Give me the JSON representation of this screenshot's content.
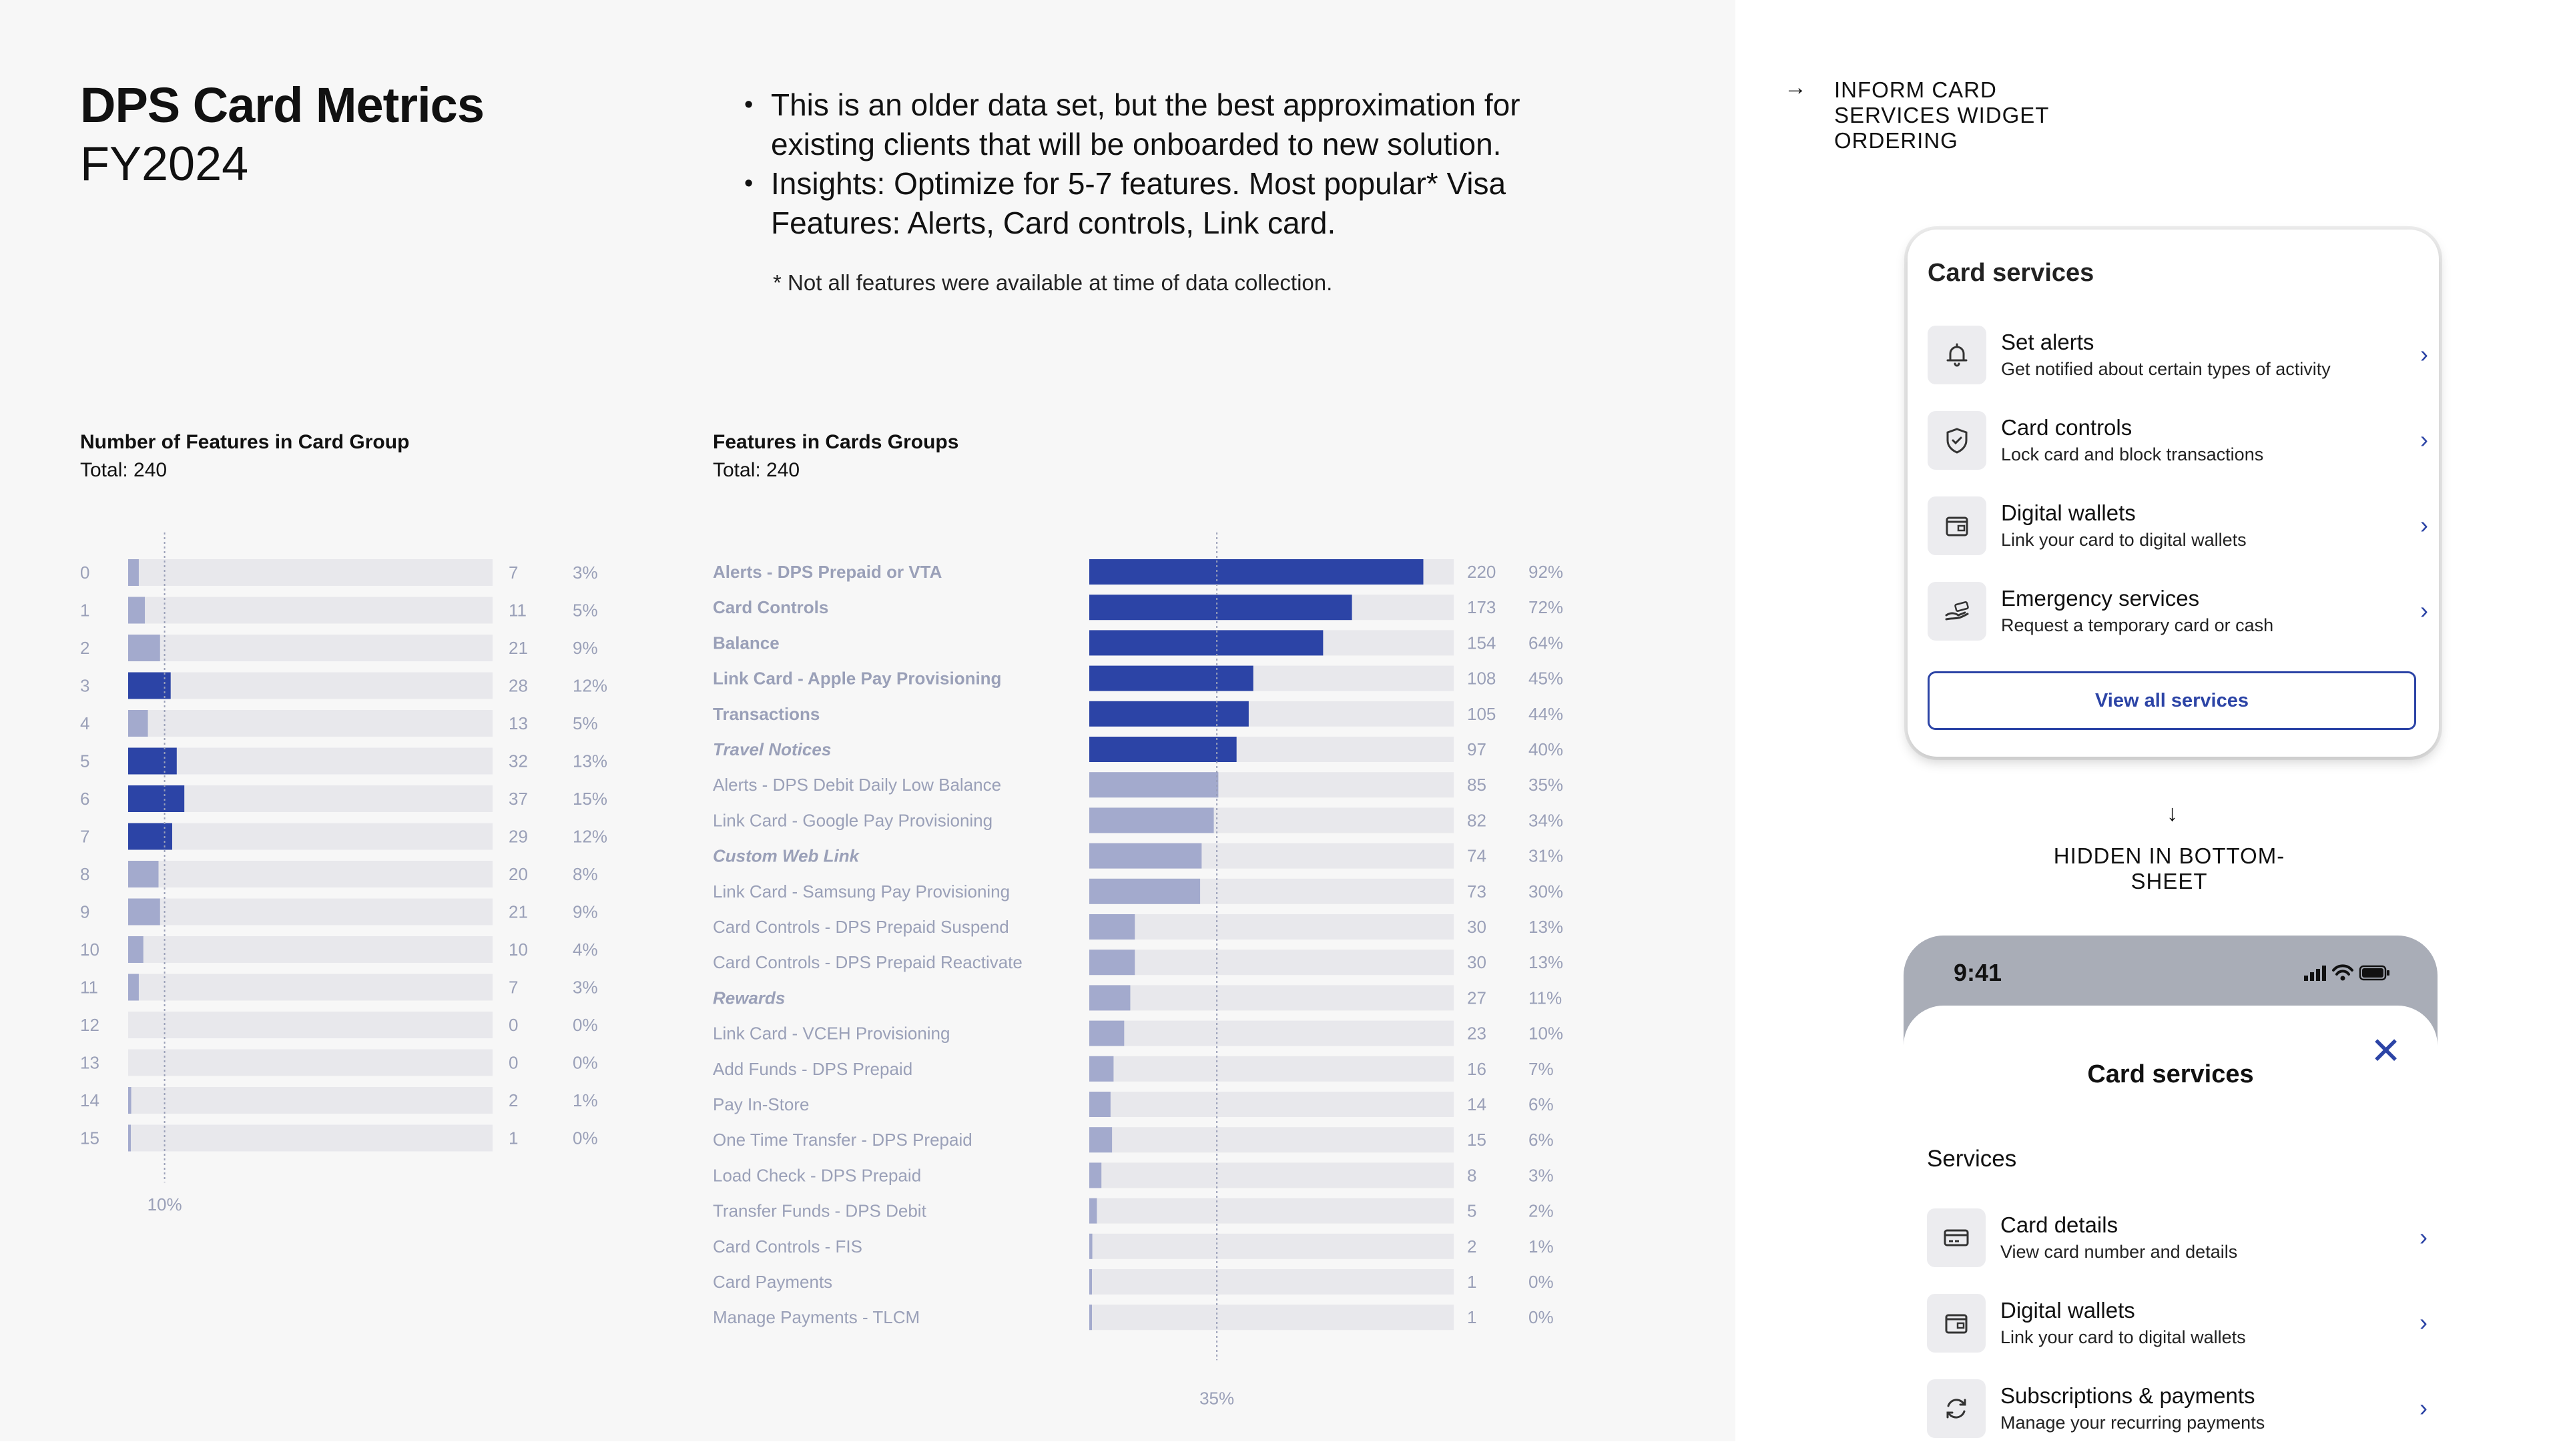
{
  "header": {
    "title": "DPS Card Metrics",
    "subtitle": "FY2024",
    "bullets": [
      "This is an older data set, but the best approximation for existing clients that will be onboarded to new solution.",
      "Insights: Optimize for 5-7 features. Most popular* Visa Features: Alerts, Card controls, Link card."
    ],
    "footnote": "* Not all features were available at time of data collection."
  },
  "colors": {
    "accent": "#2c44a6",
    "muted_bar": "#a3aacd",
    "track": "#e8e8ec",
    "label": "#9aa0b8"
  },
  "chart_data": [
    {
      "type": "bar",
      "orientation": "horizontal",
      "title": "Number of Features in Card Group",
      "subtitle": "Total: 240",
      "categories": [
        "0",
        "1",
        "2",
        "3",
        "4",
        "5",
        "6",
        "7",
        "8",
        "9",
        "10",
        "11",
        "12",
        "13",
        "14",
        "15"
      ],
      "values": [
        7,
        11,
        21,
        28,
        13,
        32,
        37,
        29,
        20,
        21,
        10,
        7,
        0,
        0,
        2,
        1
      ],
      "percent_labels": [
        "3%",
        "5%",
        "9%",
        "12%",
        "5%",
        "13%",
        "15%",
        "12%",
        "8%",
        "9%",
        "4%",
        "3%",
        "0%",
        "0%",
        "1%",
        "0%"
      ],
      "highlighted": [
        3,
        5,
        6,
        7
      ],
      "xlim": [
        0,
        240
      ],
      "reference_line": {
        "value": 24,
        "label": "10%"
      }
    },
    {
      "type": "bar",
      "orientation": "horizontal",
      "title": "Features in Cards Groups",
      "subtitle": "Total: 240",
      "categories": [
        "Alerts - DPS Prepaid or VTA",
        "Card Controls",
        "Balance",
        "Link Card - Apple Pay Provisioning",
        "Transactions",
        "Travel Notices",
        "Alerts - DPS Debit Daily Low Balance",
        "Link Card - Google Pay Provisioning",
        "Custom Web Link",
        "Link Card - Samsung Pay Provisioning",
        "Card Controls - DPS Prepaid Suspend",
        "Card Controls - DPS Prepaid Reactivate",
        "Rewards",
        "Link Card - VCEH Provisioning",
        "Add Funds - DPS Prepaid",
        "Pay In-Store",
        "One Time Transfer - DPS Prepaid",
        "Load Check - DPS Prepaid",
        "Transfer Funds - DPS Debit",
        "Card Controls - FIS",
        "Card Payments",
        "Manage Payments - TLCM"
      ],
      "values": [
        220,
        173,
        154,
        108,
        105,
        97,
        85,
        82,
        74,
        73,
        30,
        30,
        27,
        23,
        16,
        14,
        15,
        8,
        5,
        2,
        1,
        1
      ],
      "percent_labels": [
        "92%",
        "72%",
        "64%",
        "45%",
        "44%",
        "40%",
        "35%",
        "34%",
        "31%",
        "30%",
        "13%",
        "13%",
        "11%",
        "10%",
        "7%",
        "6%",
        "6%",
        "3%",
        "2%",
        "1%",
        "0%",
        "0%"
      ],
      "highlighted": [
        0,
        1,
        2,
        3,
        4,
        5
      ],
      "bold_labels": [
        0,
        1,
        2,
        3,
        4
      ],
      "italic_labels": [
        5,
        8,
        12
      ],
      "xlim": [
        0,
        240
      ],
      "reference_line": {
        "value": 84,
        "label": "35%"
      }
    }
  ],
  "inform": {
    "arrow": "→",
    "label": "INFORM CARD SERVICES WIDGET ORDERING"
  },
  "widget": {
    "title": "Card services",
    "items": [
      {
        "icon": "bell-icon",
        "name": "Set alerts",
        "desc": "Get notified about certain types of activity"
      },
      {
        "icon": "shield-icon",
        "name": "Card controls",
        "desc": "Lock card and block transactions"
      },
      {
        "icon": "wallet-icon",
        "name": "Digital wallets",
        "desc": "Link your card to digital wallets"
      },
      {
        "icon": "hand-card-icon",
        "name": "Emergency services",
        "desc": "Request a temporary card or cash"
      }
    ],
    "chevron": "›",
    "view_all": "View all services"
  },
  "hidden": {
    "arrow": "↓",
    "label": "HIDDEN IN BOTTOM-SHEET"
  },
  "phone": {
    "time": "9:41",
    "sheet_title": "Card services",
    "close": "✕",
    "section": "Services",
    "items": [
      {
        "icon": "card-icon",
        "name": "Card details",
        "desc": "View card number and details"
      },
      {
        "icon": "wallet-icon",
        "name": "Digital wallets",
        "desc": "Link your card to digital wallets"
      },
      {
        "icon": "refresh-icon",
        "name": "Subscriptions & payments",
        "desc": "Manage your recurring payments"
      }
    ]
  }
}
